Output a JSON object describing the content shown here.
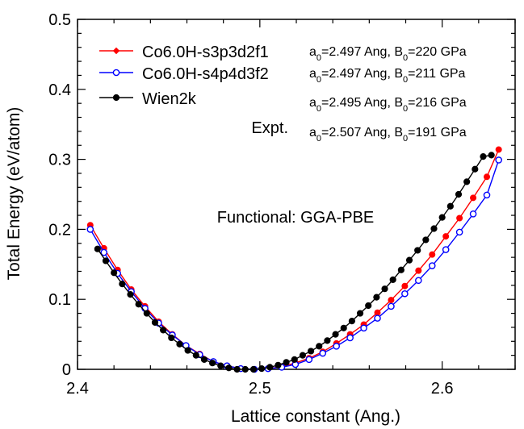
{
  "chart_data": {
    "type": "line",
    "title": "",
    "xlabel": "Lattice constant (Ang.)",
    "ylabel": "Total Energy (eV/atom)",
    "xlim": [
      2.4,
      2.64
    ],
    "ylim": [
      0,
      0.5
    ],
    "xticks": [
      "2.4",
      "2.5",
      "2.6"
    ],
    "yticks": [
      "0",
      "0.1",
      "0.2",
      "0.3",
      "0.4",
      "0.5"
    ],
    "grid": false,
    "legend_position": "top-left",
    "annotation": "Functional: GGA-PBE",
    "legend_extra_label": "Expt.",
    "params": [
      {
        "a0": "2.497",
        "B0": "220"
      },
      {
        "a0": "2.497",
        "B0": "211"
      },
      {
        "a0": "2.495",
        "B0": "216"
      },
      {
        "a0": "2.507",
        "B0": "191"
      }
    ],
    "param_format": {
      "a0_prefix": "a",
      "a0_sub": "0",
      "a0_unit": "Ang",
      "B0_prefix": "B",
      "B0_sub": "0",
      "B0_unit": "GPa",
      "sep": ", "
    },
    "series": [
      {
        "name": "Co6.0H-s3p3d2f1",
        "color": "#ff0000",
        "marker": "filled-diamond",
        "x": [
          2.407,
          2.4145,
          2.422,
          2.4295,
          2.437,
          2.4445,
          2.452,
          2.4595,
          2.467,
          2.4745,
          2.482,
          2.4895,
          2.497,
          2.5045,
          2.512,
          2.5195,
          2.527,
          2.5345,
          2.542,
          2.5495,
          2.557,
          2.5645,
          2.572,
          2.5795,
          2.587,
          2.5945,
          2.602,
          2.6095,
          2.617,
          2.6245,
          2.631
        ],
        "y": [
          0.206,
          0.173,
          0.142,
          0.114,
          0.09,
          0.068,
          0.05,
          0.034,
          0.022,
          0.011,
          0.005,
          0.001,
          0.0,
          0.001,
          0.004,
          0.009,
          0.016,
          0.025,
          0.037,
          0.05,
          0.064,
          0.081,
          0.099,
          0.119,
          0.141,
          0.164,
          0.19,
          0.216,
          0.245,
          0.275,
          0.314
        ]
      },
      {
        "name": "Co6.0H-s4p4d3f2",
        "color": "#0000ff",
        "marker": "open-circle",
        "x": [
          2.407,
          2.4145,
          2.422,
          2.4295,
          2.437,
          2.4445,
          2.452,
          2.4595,
          2.467,
          2.4745,
          2.482,
          2.4895,
          2.497,
          2.5045,
          2.512,
          2.5195,
          2.527,
          2.5345,
          2.542,
          2.5495,
          2.557,
          2.5645,
          2.572,
          2.5795,
          2.587,
          2.5945,
          2.602,
          2.6095,
          2.617,
          2.6245,
          2.631
        ],
        "y": [
          0.2,
          0.167,
          0.137,
          0.111,
          0.087,
          0.066,
          0.049,
          0.034,
          0.021,
          0.011,
          0.005,
          0.001,
          0.0,
          0.001,
          0.003,
          0.007,
          0.014,
          0.023,
          0.033,
          0.045,
          0.059,
          0.073,
          0.09,
          0.108,
          0.127,
          0.148,
          0.171,
          0.196,
          0.222,
          0.249,
          0.299
        ]
      },
      {
        "name": "Wien2k",
        "color": "#000000",
        "marker": "filled-circle",
        "x": [
          2.411,
          2.4155,
          2.42,
          2.4245,
          2.429,
          2.4335,
          2.438,
          2.4425,
          2.447,
          2.4515,
          2.456,
          2.4605,
          2.465,
          2.4695,
          2.474,
          2.4785,
          2.483,
          2.4875,
          2.492,
          2.4965,
          2.501,
          2.5055,
          2.51,
          2.5145,
          2.519,
          2.5235,
          2.528,
          2.5325,
          2.537,
          2.5415,
          2.546,
          2.5505,
          2.555,
          2.5595,
          2.564,
          2.5685,
          2.573,
          2.5775,
          2.582,
          2.5865,
          2.591,
          2.5955,
          2.6,
          2.6045,
          2.609,
          2.6135,
          2.618,
          2.6225,
          2.627
        ],
        "y": [
          0.172,
          0.155,
          0.138,
          0.122,
          0.107,
          0.093,
          0.08,
          0.067,
          0.056,
          0.045,
          0.036,
          0.027,
          0.02,
          0.014,
          0.009,
          0.005,
          0.002,
          0.0,
          0.0,
          0.0,
          0.001,
          0.003,
          0.006,
          0.01,
          0.014,
          0.02,
          0.026,
          0.033,
          0.041,
          0.05,
          0.059,
          0.069,
          0.08,
          0.091,
          0.103,
          0.115,
          0.128,
          0.142,
          0.156,
          0.17,
          0.185,
          0.201,
          0.217,
          0.233,
          0.25,
          0.268,
          0.286,
          0.304,
          0.306
        ]
      }
    ]
  }
}
